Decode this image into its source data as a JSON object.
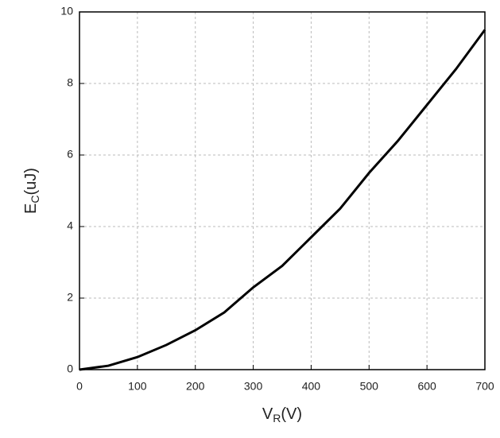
{
  "chart_data": {
    "type": "line",
    "y_label": {
      "main": "E",
      "sub": "C",
      "unit": "(uJ)"
    },
    "x_label": {
      "main": "V",
      "sub": "R",
      "unit": "(V)"
    },
    "x": [
      0,
      50,
      100,
      150,
      200,
      250,
      300,
      350,
      400,
      450,
      500,
      550,
      600,
      650,
      700
    ],
    "series": [
      {
        "color": "#000000",
        "values": [
          0,
          0.11,
          0.35,
          0.69,
          1.1,
          1.6,
          2.3,
          2.9,
          3.7,
          4.5,
          5.5,
          6.4,
          7.4,
          8.4,
          9.5
        ]
      }
    ],
    "xlim": [
      0,
      700
    ],
    "xticks": [
      0,
      100,
      200,
      300,
      400,
      500,
      600,
      700
    ],
    "ylim": [
      0,
      10
    ],
    "yticks": [
      0,
      2,
      4,
      6,
      8,
      10
    ],
    "grid": true
  }
}
